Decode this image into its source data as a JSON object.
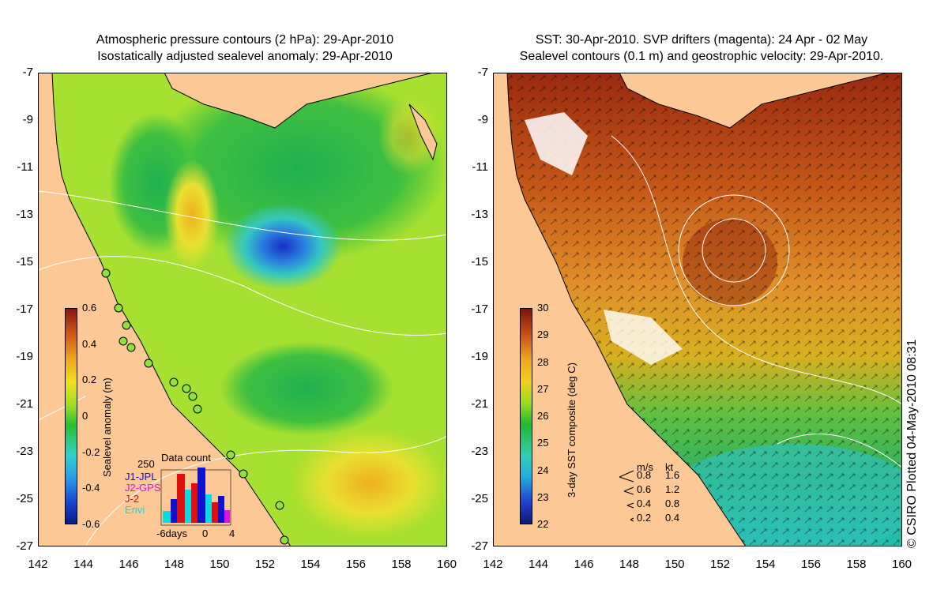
{
  "left_panel": {
    "title_line1": "Atmospheric pressure contours (2 hPa): 29-Apr-2010",
    "title_line2": "Isostatically adjusted sealevel anomaly: 29-Apr-2010",
    "colorbar": {
      "title": "Sealevel anomaly (m)",
      "ticks": [
        "0.6",
        "0.4",
        "0.2",
        "0",
        "-0.2",
        "-0.4",
        "-0.6"
      ]
    },
    "data_count": {
      "title": "Data count",
      "ymax_label": "250",
      "series": [
        {
          "name": "J1-JPL",
          "color": "#1010d0"
        },
        {
          "name": "J2-GPS",
          "color": "#e010e0"
        },
        {
          "name": "J-2",
          "color": "#e01010"
        },
        {
          "name": "Envi",
          "color": "#10d8e0"
        }
      ],
      "x_labels": [
        "-6days",
        "0",
        "4"
      ]
    }
  },
  "right_panel": {
    "title_line1": "SST: 30-Apr-2010. SVP drifters (magenta): 24 Apr - 02 May",
    "title_line2": "Sealevel contours (0.1 m) and geostrophic velocity: 29-Apr-2010.",
    "colorbar": {
      "title": "3-day SST composite (deg C)",
      "ticks": [
        "30",
        "29",
        "28",
        "27",
        "26",
        "25",
        "24",
        "23",
        "22"
      ]
    },
    "velocity_legend": {
      "header_ms": "m/s",
      "header_kt": "kt",
      "rows": [
        {
          "ms": "0.8",
          "kt": "1.6"
        },
        {
          "ms": "0.6",
          "kt": "1.2"
        },
        {
          "ms": "0.4",
          "kt": "0.8"
        },
        {
          "ms": "0.2",
          "kt": "0.4"
        }
      ]
    }
  },
  "axes": {
    "lat_labels": [
      "-7",
      "-9",
      "-11",
      "-13",
      "-15",
      "-17",
      "-19",
      "-21",
      "-23",
      "-25",
      "-27"
    ],
    "lon_labels": [
      "142",
      "144",
      "146",
      "148",
      "150",
      "152",
      "154",
      "156",
      "158",
      "160"
    ]
  },
  "credit": "© CSIRO Plotted 04-May-2010 08:31",
  "colors": {
    "land": "#fbc896",
    "sla_background": "#a6e030",
    "sst_background": "#c85a18"
  }
}
